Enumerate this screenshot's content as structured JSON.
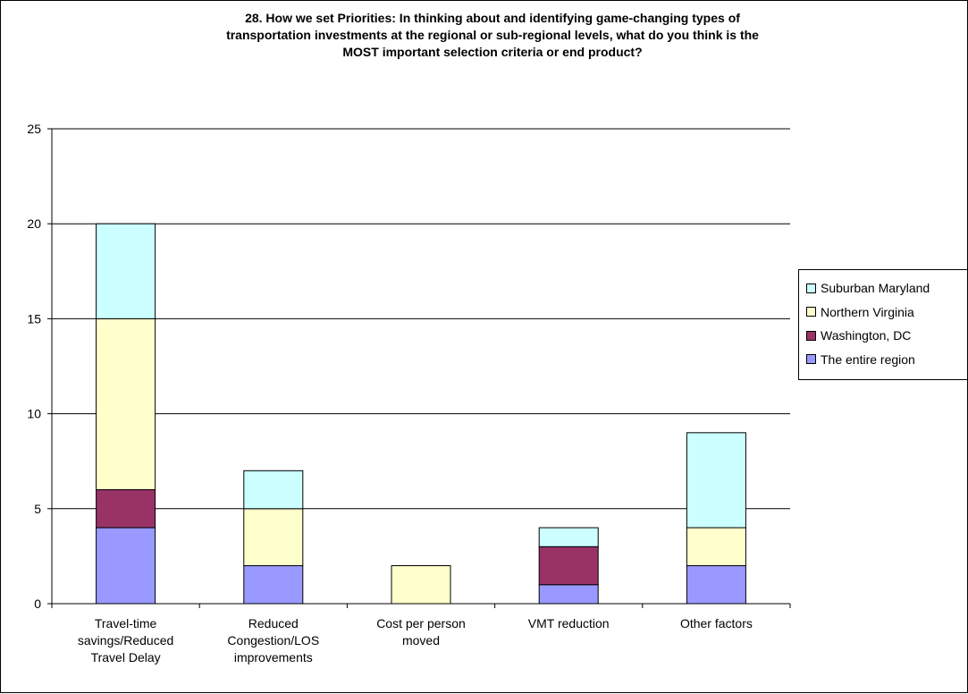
{
  "chart_data": {
    "type": "bar",
    "stacked": true,
    "title_lines": [
      "28.  How we set Priorities: In thinking about and identifying game-changing types of",
      "transportation investments at the regional or sub-regional levels, what do you think is the",
      "MOST important selection criteria or end product?"
    ],
    "categories": [
      [
        "Travel-time",
        "savings/Reduced",
        "Travel Delay"
      ],
      [
        "Reduced",
        "Congestion/LOS",
        "improvements"
      ],
      [
        "Cost per person",
        "moved"
      ],
      [
        "VMT reduction"
      ],
      [
        "Other factors"
      ]
    ],
    "series": [
      {
        "name": "The entire region",
        "color": "#9999ff",
        "values": [
          4,
          2,
          0,
          1,
          2
        ]
      },
      {
        "name": "Washington, DC",
        "color": "#993366",
        "values": [
          2,
          0,
          0,
          2,
          0
        ]
      },
      {
        "name": "Northern Virginia",
        "color": "#ffffcc",
        "values": [
          9,
          3,
          2,
          0,
          2
        ]
      },
      {
        "name": "Suburban Maryland",
        "color": "#ccffff",
        "values": [
          5,
          2,
          0,
          1,
          5
        ]
      }
    ],
    "legend_order": [
      "Suburban Maryland",
      "Northern Virginia",
      "Washington, DC",
      "The entire region"
    ],
    "yticks": [
      0,
      5,
      10,
      15,
      20,
      25
    ],
    "ylim": [
      0,
      25
    ],
    "grid": true,
    "legend_position": "right"
  }
}
